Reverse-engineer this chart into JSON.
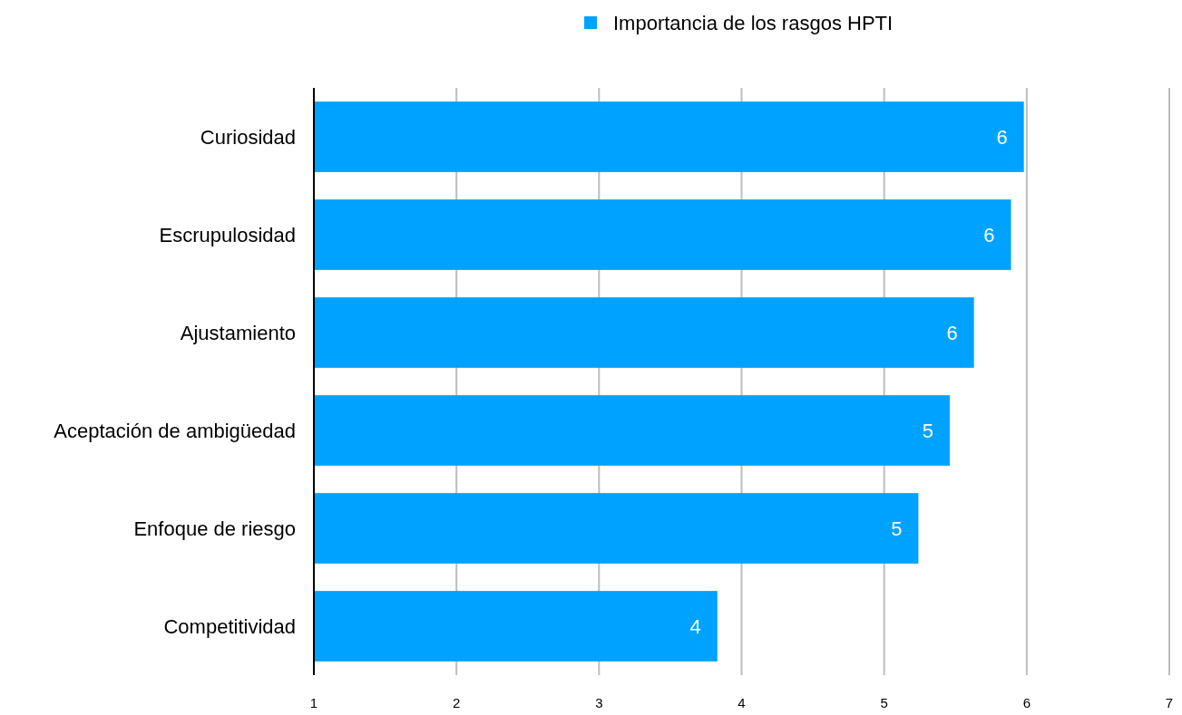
{
  "chart_data": {
    "type": "bar",
    "orientation": "horizontal",
    "categories": [
      "Curiosidad",
      "Escrupulosidad",
      "Ajustamiento",
      "Aceptación de ambigüedad",
      "Enfoque de riesgo",
      "Competitividad"
    ],
    "series": [
      {
        "name": "Importancia de los rasgos HPTI",
        "color": "#00a2ff",
        "values": [
          5.98,
          5.89,
          5.63,
          5.46,
          5.24,
          3.83
        ],
        "value_labels": [
          "6",
          "6",
          "6",
          "5",
          "5",
          "4"
        ]
      }
    ],
    "xlim": [
      1,
      7
    ],
    "xticks": [
      1,
      2,
      3,
      4,
      5,
      6,
      7
    ],
    "grid": "x",
    "legend": "top"
  }
}
